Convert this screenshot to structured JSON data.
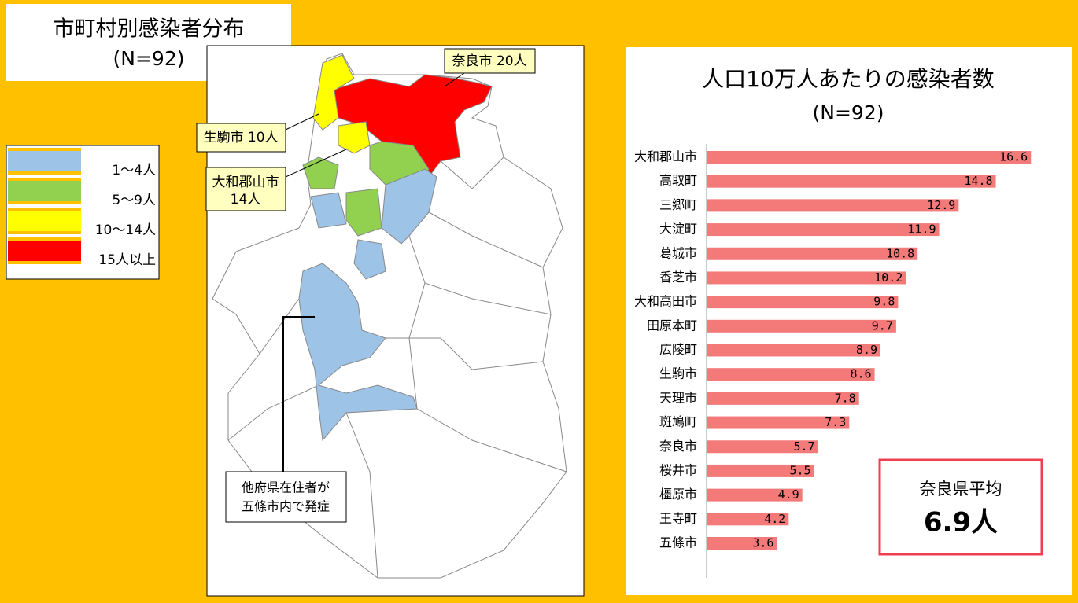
{
  "map": {
    "title": "市町村別感染者分布",
    "subtitle": "(N=92)",
    "legend": [
      {
        "label": "1～4人",
        "color": "#9dc3e6"
      },
      {
        "label": "5～9人",
        "color": "#92d050"
      },
      {
        "label": "10～14人",
        "color": "#ffff00"
      },
      {
        "label": "15人以上",
        "color": "#ff0000"
      }
    ],
    "callouts": [
      {
        "lines": [
          "奈良市 20人"
        ]
      },
      {
        "lines": [
          "生駒市 10人"
        ]
      },
      {
        "lines": [
          "大和郡山市",
          "14人"
        ]
      }
    ],
    "note": {
      "lines": [
        "他府県在住者が",
        "五條市内で発症"
      ]
    }
  },
  "chart_data": {
    "type": "bar",
    "orientation": "horizontal",
    "title": "人口10万人あたりの感染者数",
    "subtitle": "(N=92)",
    "categories": [
      "大和郡山市",
      "高取町",
      "三郷町",
      "大淀町",
      "葛城市",
      "香芝市",
      "大和高田市",
      "田原本町",
      "広陵町",
      "生駒市",
      "天理市",
      "斑鳩町",
      "奈良市",
      "桜井市",
      "橿原市",
      "王寺町",
      "五條市"
    ],
    "values": [
      16.6,
      14.8,
      12.9,
      11.9,
      10.8,
      10.2,
      9.8,
      9.7,
      8.9,
      8.6,
      7.8,
      7.3,
      5.7,
      5.5,
      4.9,
      4.2,
      3.6
    ],
    "color": "#f47a7a",
    "xlim": [
      0,
      18
    ]
  },
  "average": {
    "label": "奈良県平均",
    "value": "6.9人"
  }
}
